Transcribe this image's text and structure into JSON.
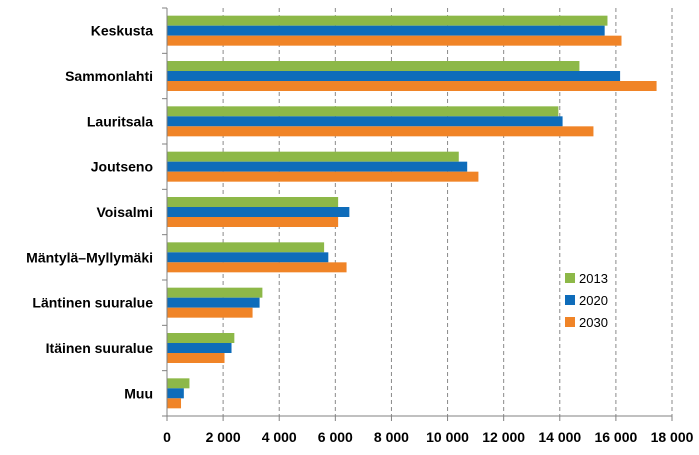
{
  "chart_data": {
    "type": "bar",
    "orientation": "horizontal",
    "categories": [
      "Keskusta",
      "Sammonlahti",
      "Lauritsala",
      "Joutseno",
      "Voisalmi",
      "Mäntylä–Myllymäki",
      "Läntinen suuralue",
      "Itäinen suuralue",
      "Muu"
    ],
    "series": [
      {
        "name": "2013",
        "color": "#8DB848",
        "values": [
          15700,
          14700,
          13950,
          10400,
          6100,
          5600,
          3400,
          2400,
          800
        ]
      },
      {
        "name": "2020",
        "color": "#0E6CBA",
        "values": [
          15600,
          16150,
          14100,
          10700,
          6500,
          5750,
          3300,
          2300,
          600
        ]
      },
      {
        "name": "2030",
        "color": "#F08427",
        "values": [
          16200,
          17450,
          15200,
          11100,
          6100,
          6400,
          3050,
          2050,
          500
        ]
      }
    ],
    "xlim": [
      0,
      18000
    ],
    "xticks": [
      0,
      2000,
      4000,
      6000,
      8000,
      10000,
      12000,
      14000,
      16000,
      18000
    ],
    "xtick_labels": [
      "0",
      "2 000",
      "4 000",
      "6 000",
      "8 000",
      "10 000",
      "12 000",
      "14 000",
      "16 000",
      "18 000"
    ],
    "grid": "vertical-dashed",
    "legend": "bottom-right",
    "title": "",
    "xlabel": "",
    "ylabel": ""
  }
}
